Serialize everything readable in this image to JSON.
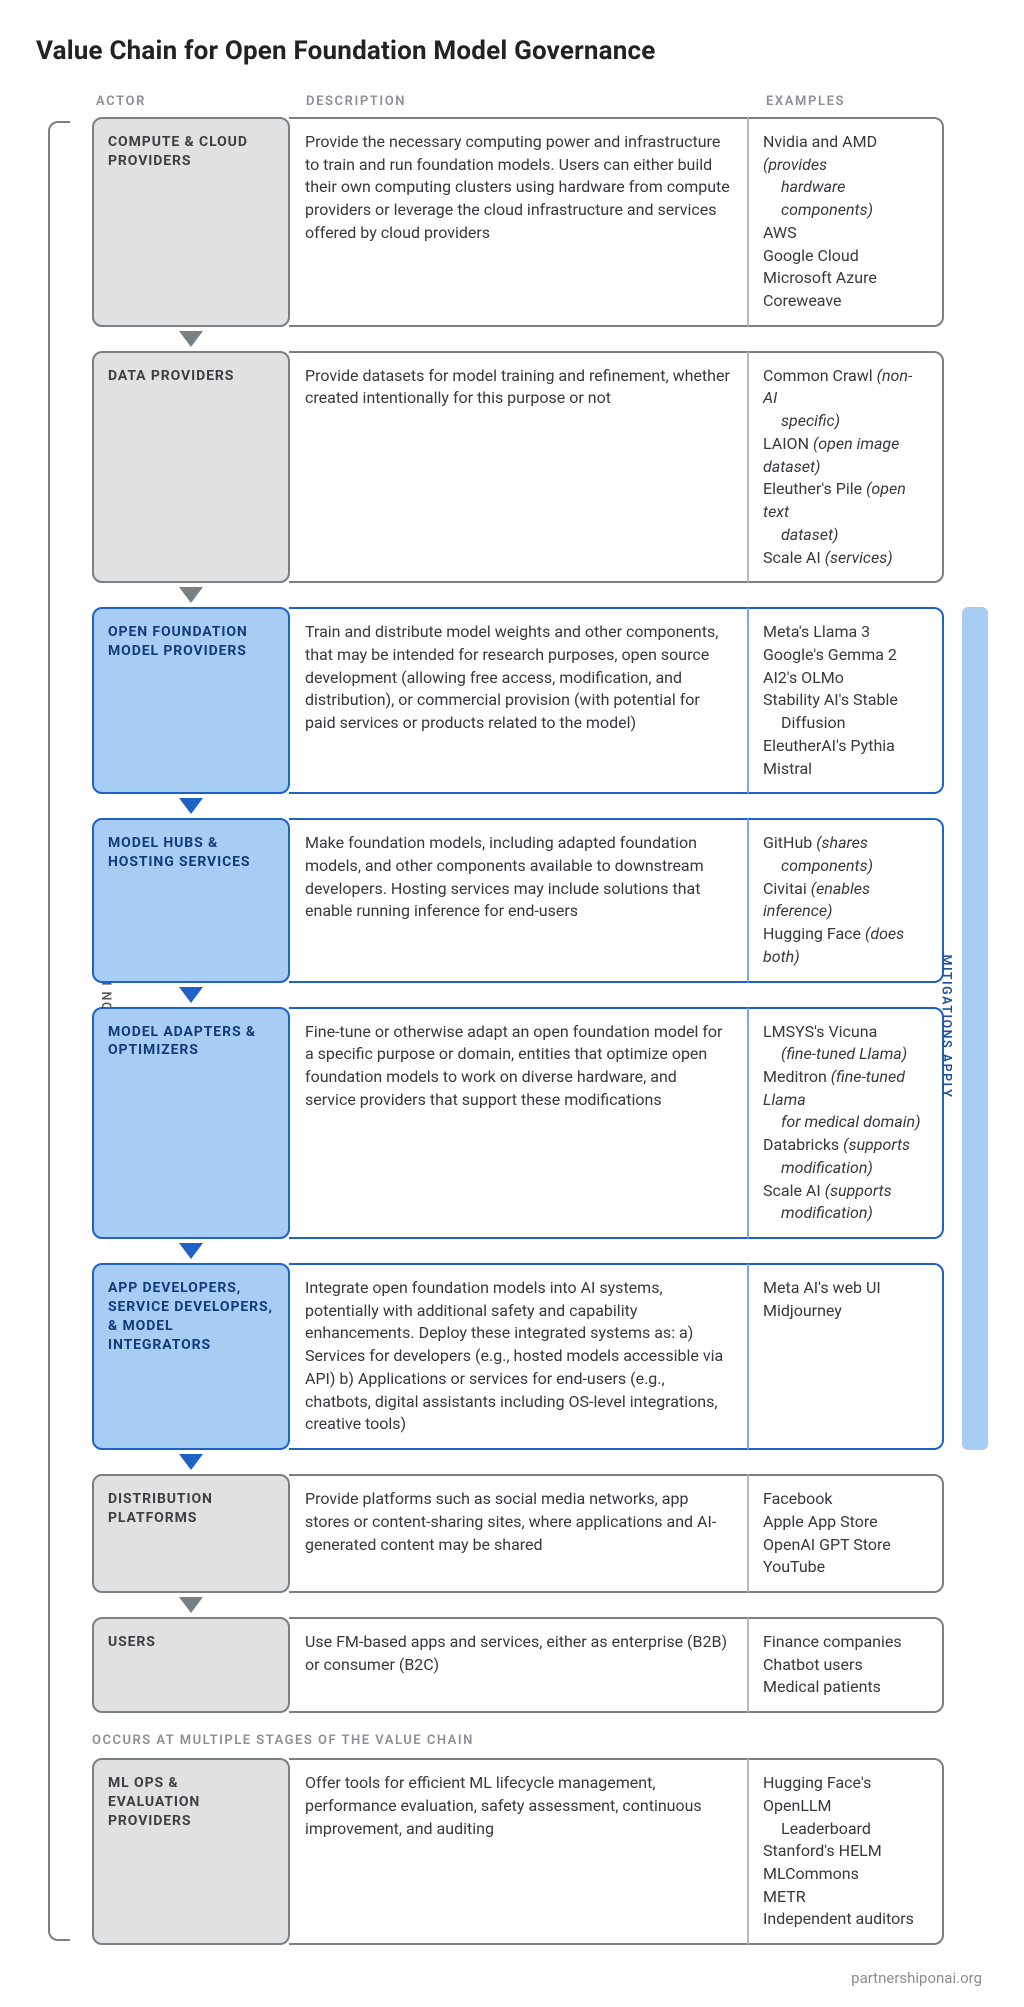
{
  "title": "Value Chain for Open Foundation Model Governance",
  "headers": {
    "actor": "ACTOR",
    "description": "DESCRIPTION",
    "examples": "EXAMPLES"
  },
  "left_rail_label": "ML OPS & EVALUATION PROVIDERS",
  "right_rail_label": "MITIGATIONS APPLY",
  "multi_stage_label": "OCCURS AT MULTIPLE STAGES OF THE VALUE CHAIN",
  "footer": "partnershiponai.org",
  "colors": {
    "gray_fill": "#dfe1e2",
    "gray_border": "#7a7f84",
    "blue_fill": "#a7cdf5",
    "blue_border": "#1f62c7",
    "arrow_gray": "#7a7f84",
    "arrow_blue": "#1f62c7",
    "header_text": "#8a8f95",
    "body_text": "#36393c"
  },
  "rows": [
    {
      "id": "compute",
      "variant": "gray",
      "actor": "COMPUTE & CLOUD PROVIDERS",
      "description": "Provide the necessary computing power and infrastructure to train and run foundation models. Users can either build their own computing clusters using hardware from compute providers or leverage the cloud infrastructure and services offered by cloud providers",
      "examples": [
        {
          "text": "Nvidia and AMD ",
          "note": "(provides",
          "cont": "hardware components)"
        },
        {
          "text": "AWS"
        },
        {
          "text": "Google Cloud"
        },
        {
          "text": "Microsoft Azure"
        },
        {
          "text": "Coreweave"
        }
      ],
      "arrow_after": "gray"
    },
    {
      "id": "data",
      "variant": "gray",
      "actor": "DATA PROVIDERS",
      "description": "Provide datasets for model training and refinement, whether created intentionally for this purpose or not",
      "examples": [
        {
          "text": "Common Crawl ",
          "note": "(non-AI",
          "cont": "specific)"
        },
        {
          "text": "LAION ",
          "note": "(open image dataset)"
        },
        {
          "text": "Eleuther's Pile ",
          "note": "(open text",
          "cont": "dataset)"
        },
        {
          "text": "Scale AI ",
          "note": "(services)"
        }
      ],
      "arrow_after": "gray"
    },
    {
      "id": "ofm",
      "variant": "blue",
      "actor": "OPEN FOUNDATION MODEL PROVIDERS",
      "description": "Train and distribute model weights and other components, that may be intended for research purposes, open source development (allowing free access, modification, and distribution), or commercial provision (with potential for paid services or products related to the model)",
      "examples": [
        {
          "text": "Meta's Llama 3"
        },
        {
          "text": "Google's Gemma 2"
        },
        {
          "text": "AI2's OLMo"
        },
        {
          "text": "Stability AI's Stable",
          "cont_plain": "Diffusion"
        },
        {
          "text": "EleutherAI's Pythia"
        },
        {
          "text": "Mistral"
        }
      ],
      "arrow_after": "blue"
    },
    {
      "id": "hubs",
      "variant": "blue",
      "actor": "MODEL HUBS & HOSTING SERVICES",
      "description": "Make foundation models, including adapted foundation models, and other components available to downstream developers. Hosting services may include solutions that enable running inference for end-users",
      "examples": [
        {
          "text": "GitHub ",
          "note": "(shares",
          "cont": "components)"
        },
        {
          "text": "Civitai ",
          "note": "(enables inference)"
        },
        {
          "text": "Hugging Face ",
          "note": "(does both)"
        }
      ],
      "arrow_after": "blue"
    },
    {
      "id": "adapters",
      "variant": "blue",
      "actor": "MODEL ADAPTERS & OPTIMIZERS",
      "description": "Fine-tune or otherwise adapt an open foundation model for a specific purpose or domain, entities that optimize open foundation models to work on diverse hardware, and service providers that support these modifications",
      "examples": [
        {
          "text": "LMSYS's Vicuna",
          "cont_note": "(fine-tuned Llama)"
        },
        {
          "text": "Meditron ",
          "note": "(fine-tuned Llama",
          "cont": "for medical domain)"
        },
        {
          "text": "Databricks ",
          "note": "(supports",
          "cont": "modification)"
        },
        {
          "text": "Scale AI ",
          "note": "(supports",
          "cont": "modification)"
        }
      ],
      "arrow_after": "blue"
    },
    {
      "id": "appdev",
      "variant": "blue",
      "actor": "APP DEVELOPERS, SERVICE DEVELOPERS, & MODEL INTEGRATORS",
      "description": "Integrate open foundation models into AI systems, potentially with additional safety and capability enhancements. Deploy these integrated systems as: a) Services for developers (e.g., hosted models accessible via API) b) Applications or services for end-users (e.g., chatbots, digital assistants including OS-level integrations, creative tools)",
      "examples": [
        {
          "text": "Meta AI's web UI"
        },
        {
          "text": "Midjourney"
        }
      ],
      "arrow_after": "blue"
    },
    {
      "id": "dist",
      "variant": "gray",
      "actor": "DISTRIBUTION PLATFORMS",
      "description": "Provide platforms such as social media networks, app stores or content-sharing sites, where applications and AI-generated content may be shared",
      "examples": [
        {
          "text": "Facebook"
        },
        {
          "text": "Apple App Store"
        },
        {
          "text": "OpenAI GPT Store"
        },
        {
          "text": "YouTube"
        }
      ],
      "arrow_after": "gray"
    },
    {
      "id": "users",
      "variant": "gray",
      "actor": "USERS",
      "description": "Use FM-based apps and services, either as enterprise (B2B) or consumer (B2C)",
      "examples": [
        {
          "text": "Finance companies"
        },
        {
          "text": "Chatbot users"
        },
        {
          "text": "Medical patients"
        }
      ],
      "arrow_after": null
    }
  ],
  "mlops_row": {
    "id": "mlops",
    "variant": "gray",
    "actor": "ML OPS & EVALUATION PROVIDERS",
    "description": "Offer tools for efficient ML lifecycle management, performance evaluation, safety assessment, continuous improvement, and auditing",
    "examples": [
      {
        "text": "Hugging Face's OpenLLM",
        "cont_plain": "Leaderboard"
      },
      {
        "text": "Stanford's HELM"
      },
      {
        "text": "MLCommons"
      },
      {
        "text": "METR"
      },
      {
        "text": "Independent auditors"
      }
    ]
  },
  "mitigations_span": {
    "from_row": "ofm",
    "to_row": "appdev"
  }
}
